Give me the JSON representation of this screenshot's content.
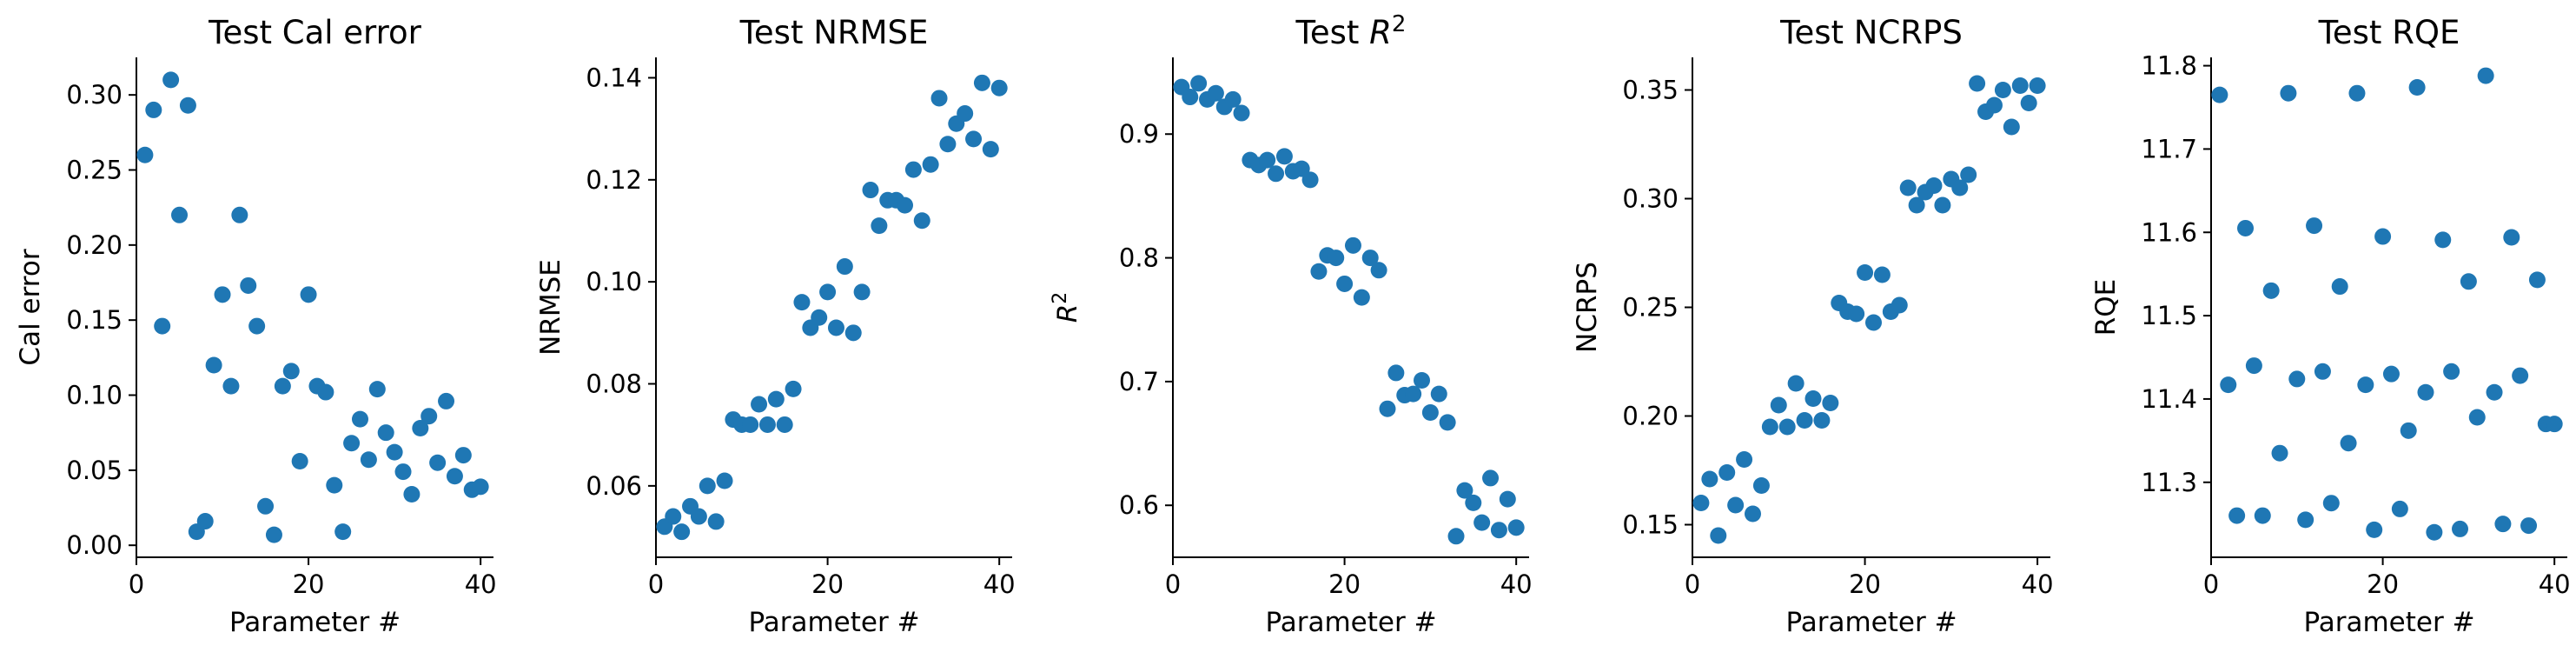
{
  "chart_data": [
    {
      "type": "scatter",
      "title": "Test Cal error",
      "xlabel": "Parameter #",
      "ylabel": "Cal error",
      "xlim": [
        0,
        41.5
      ],
      "ylim": [
        -0.008,
        0.325
      ],
      "xticks": [
        0,
        20,
        40
      ],
      "xtick_labels": [
        "0",
        "20",
        "40"
      ],
      "yticks": [
        0.0,
        0.05,
        0.1,
        0.15,
        0.2,
        0.25,
        0.3
      ],
      "ytick_labels": [
        "0.00",
        "0.05",
        "0.10",
        "0.15",
        "0.20",
        "0.25",
        "0.30"
      ],
      "grid": false,
      "color": "#1f77b4",
      "x": [
        1,
        2,
        3,
        4,
        5,
        6,
        7,
        8,
        9,
        10,
        11,
        12,
        13,
        14,
        15,
        16,
        17,
        18,
        19,
        20,
        21,
        22,
        23,
        24,
        25,
        26,
        27,
        28,
        29,
        30,
        31,
        32,
        33,
        34,
        35,
        36,
        37,
        38,
        39,
        40
      ],
      "y": [
        0.26,
        0.29,
        0.146,
        0.31,
        0.22,
        0.293,
        0.009,
        0.016,
        0.12,
        0.167,
        0.106,
        0.22,
        0.173,
        0.146,
        0.026,
        0.007,
        0.106,
        0.116,
        0.056,
        0.167,
        0.106,
        0.102,
        0.04,
        0.009,
        0.068,
        0.084,
        0.057,
        0.104,
        0.075,
        0.062,
        0.049,
        0.034,
        0.078,
        0.086,
        0.055,
        0.096,
        0.046,
        0.06,
        0.037,
        0.039
      ]
    },
    {
      "type": "scatter",
      "title": "Test NRMSE",
      "xlabel": "Parameter #",
      "ylabel": "NRMSE",
      "xlim": [
        0,
        41.5
      ],
      "ylim": [
        0.046,
        0.144
      ],
      "xticks": [
        0,
        20,
        40
      ],
      "xtick_labels": [
        "0",
        "20",
        "40"
      ],
      "yticks": [
        0.06,
        0.08,
        0.1,
        0.12,
        0.14
      ],
      "ytick_labels": [
        "0.06",
        "0.08",
        "0.10",
        "0.12",
        "0.14"
      ],
      "grid": false,
      "color": "#1f77b4",
      "x": [
        1,
        2,
        3,
        4,
        5,
        6,
        7,
        8,
        9,
        10,
        11,
        12,
        13,
        14,
        15,
        16,
        17,
        18,
        19,
        20,
        21,
        22,
        23,
        24,
        25,
        26,
        27,
        28,
        29,
        30,
        31,
        32,
        33,
        34,
        35,
        36,
        37,
        38,
        39,
        40
      ],
      "y": [
        0.052,
        0.054,
        0.051,
        0.056,
        0.054,
        0.06,
        0.053,
        0.061,
        0.073,
        0.072,
        0.072,
        0.076,
        0.072,
        0.077,
        0.072,
        0.079,
        0.096,
        0.091,
        0.093,
        0.098,
        0.091,
        0.103,
        0.09,
        0.098,
        0.118,
        0.111,
        0.116,
        0.116,
        0.115,
        0.122,
        0.112,
        0.123,
        0.136,
        0.127,
        0.131,
        0.133,
        0.128,
        0.139,
        0.126,
        0.138
      ]
    },
    {
      "type": "scatter",
      "title": "Test R",
      "title_sup": "2",
      "xlabel": "Parameter #",
      "ylabel": "R",
      "ylabel_sup": "2",
      "xlim": [
        0,
        41.5
      ],
      "ylim": [
        0.558,
        0.962
      ],
      "xticks": [
        0,
        20,
        40
      ],
      "xtick_labels": [
        "0",
        "20",
        "40"
      ],
      "yticks": [
        0.6,
        0.7,
        0.8,
        0.9
      ],
      "ytick_labels": [
        "0.6",
        "0.7",
        "0.8",
        "0.9"
      ],
      "grid": false,
      "color": "#1f77b4",
      "x": [
        1,
        2,
        3,
        4,
        5,
        6,
        7,
        8,
        9,
        10,
        11,
        12,
        13,
        14,
        15,
        16,
        17,
        18,
        19,
        20,
        21,
        22,
        23,
        24,
        25,
        26,
        27,
        28,
        29,
        30,
        31,
        32,
        33,
        34,
        35,
        36,
        37,
        38,
        39,
        40
      ],
      "y": [
        0.938,
        0.93,
        0.941,
        0.928,
        0.933,
        0.922,
        0.928,
        0.917,
        0.879,
        0.875,
        0.879,
        0.868,
        0.882,
        0.87,
        0.872,
        0.863,
        0.789,
        0.802,
        0.8,
        0.779,
        0.81,
        0.768,
        0.8,
        0.79,
        0.678,
        0.707,
        0.689,
        0.69,
        0.701,
        0.675,
        0.69,
        0.667,
        0.575,
        0.612,
        0.602,
        0.586,
        0.622,
        0.58,
        0.605,
        0.582
      ]
    },
    {
      "type": "scatter",
      "title": "Test NCRPS",
      "xlabel": "Parameter #",
      "ylabel": "NCRPS",
      "xlim": [
        0,
        41.5
      ],
      "ylim": [
        0.135,
        0.365
      ],
      "xticks": [
        0,
        20,
        40
      ],
      "xtick_labels": [
        "0",
        "20",
        "40"
      ],
      "yticks": [
        0.15,
        0.2,
        0.25,
        0.3,
        0.35
      ],
      "ytick_labels": [
        "0.15",
        "0.20",
        "0.25",
        "0.30",
        "0.35"
      ],
      "grid": false,
      "color": "#1f77b4",
      "x": [
        1,
        2,
        3,
        4,
        5,
        6,
        7,
        8,
        9,
        10,
        11,
        12,
        13,
        14,
        15,
        16,
        17,
        18,
        19,
        20,
        21,
        22,
        23,
        24,
        25,
        26,
        27,
        28,
        29,
        30,
        31,
        32,
        33,
        34,
        35,
        36,
        37,
        38,
        39,
        40
      ],
      "y": [
        0.16,
        0.171,
        0.145,
        0.174,
        0.159,
        0.18,
        0.155,
        0.168,
        0.195,
        0.205,
        0.195,
        0.215,
        0.198,
        0.208,
        0.198,
        0.206,
        0.252,
        0.248,
        0.247,
        0.266,
        0.243,
        0.265,
        0.248,
        0.251,
        0.305,
        0.297,
        0.303,
        0.306,
        0.297,
        0.309,
        0.305,
        0.311,
        0.353,
        0.34,
        0.343,
        0.35,
        0.333,
        0.352,
        0.344,
        0.352
      ]
    },
    {
      "type": "scatter",
      "title": "Test RQE",
      "xlabel": "Parameter #",
      "ylabel": "RQE",
      "xlim": [
        0,
        41.5
      ],
      "ylim": [
        11.21,
        11.81
      ],
      "xticks": [
        0,
        20,
        40
      ],
      "xtick_labels": [
        "0",
        "20",
        "40"
      ],
      "yticks": [
        11.3,
        11.4,
        11.5,
        11.6,
        11.7,
        11.8
      ],
      "ytick_labels": [
        "11.3",
        "11.4",
        "11.5",
        "11.6",
        "11.7",
        "11.8"
      ],
      "grid": false,
      "color": "#1f77b4",
      "x": [
        1,
        2,
        3,
        4,
        5,
        6,
        7,
        8,
        9,
        10,
        11,
        12,
        13,
        14,
        15,
        16,
        17,
        18,
        19,
        20,
        21,
        22,
        23,
        24,
        25,
        26,
        27,
        28,
        29,
        30,
        31,
        32,
        33,
        34,
        35,
        36,
        37,
        38,
        39,
        40
      ],
      "y": [
        11.765,
        11.417,
        11.26,
        11.605,
        11.44,
        11.26,
        11.53,
        11.335,
        11.767,
        11.424,
        11.255,
        11.608,
        11.433,
        11.275,
        11.535,
        11.347,
        11.767,
        11.417,
        11.243,
        11.595,
        11.43,
        11.268,
        11.362,
        11.774,
        11.408,
        11.24,
        11.591,
        11.433,
        11.244,
        11.541,
        11.378,
        11.788,
        11.408,
        11.25,
        11.594,
        11.428,
        11.248,
        11.543,
        11.37,
        11.37
      ]
    }
  ]
}
